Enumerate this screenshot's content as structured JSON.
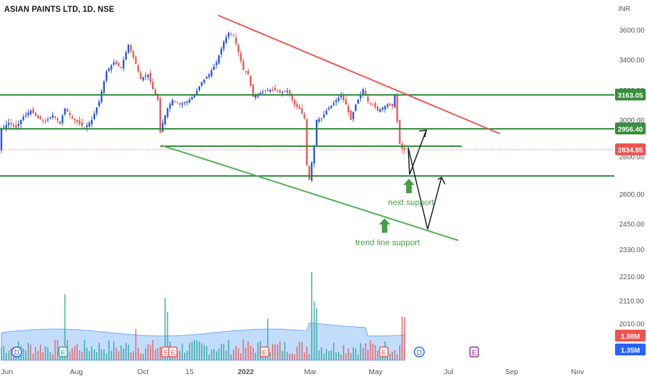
{
  "header": {
    "title": "ASIAN PAINTS LTD, 1D, NSE",
    "currency": "INR"
  },
  "chart_data": {
    "type": "candlestick",
    "title": "ASIAN PAINTS LTD, 1D, NSE",
    "yaxis_unit": "INR",
    "y_ticks": [
      "3600.00",
      "3400.00",
      "3200.00",
      "3000.00",
      "2800.00",
      "2600.00",
      "2450.00",
      "2330.00",
      "2210.00",
      "2110.00",
      "2010.00"
    ],
    "x_ticks": [
      "Jun",
      "Aug",
      "Oct",
      "15",
      "2022",
      "Mar",
      "May",
      "Jul",
      "Sep",
      "Nov"
    ],
    "price_labels": [
      {
        "text": "3163.05",
        "color": "#388e3c"
      },
      {
        "text": "2956.40",
        "color": "#388e3c"
      },
      {
        "text": "2834.85",
        "color": "#ef5350"
      },
      {
        "text": "1.88M",
        "color": "#ef5350"
      },
      {
        "text": "1.35M",
        "color": "#2962ff"
      }
    ],
    "price_path": [
      [
        0,
        2955
      ],
      [
        3,
        2985
      ],
      [
        6,
        2960
      ],
      [
        9,
        3020
      ],
      [
        12,
        3060
      ],
      [
        15,
        3010
      ],
      [
        18,
        2990
      ],
      [
        21,
        3030
      ],
      [
        24,
        2980
      ],
      [
        26,
        3075
      ],
      [
        29,
        3010
      ],
      [
        31,
        2990
      ],
      [
        34,
        2960
      ],
      [
        37,
        3000
      ],
      [
        40,
        3120
      ],
      [
        43,
        3320
      ],
      [
        46,
        3380
      ],
      [
        49,
        3345
      ],
      [
        52,
        3500
      ],
      [
        55,
        3370
      ],
      [
        57,
        3270
      ],
      [
        60,
        3300
      ],
      [
        62,
        3200
      ],
      [
        64,
        3130
      ],
      [
        65,
        2935
      ],
      [
        66,
        2985
      ],
      [
        68,
        3075
      ],
      [
        70,
        3130
      ],
      [
        73,
        3100
      ],
      [
        76,
        3120
      ],
      [
        79,
        3160
      ],
      [
        82,
        3250
      ],
      [
        85,
        3300
      ],
      [
        88,
        3380
      ],
      [
        91,
        3520
      ],
      [
        93,
        3580
      ],
      [
        95,
        3560
      ],
      [
        97,
        3450
      ],
      [
        99,
        3330
      ],
      [
        101,
        3300
      ],
      [
        103,
        3150
      ],
      [
        105,
        3170
      ],
      [
        108,
        3190
      ],
      [
        111,
        3200
      ],
      [
        114,
        3180
      ],
      [
        117,
        3190
      ],
      [
        120,
        3100
      ],
      [
        122,
        3070
      ],
      [
        124,
        3010
      ],
      [
        125,
        2770
      ],
      [
        126,
        2700
      ],
      [
        128,
        2860
      ],
      [
        129,
        3000
      ],
      [
        131,
        3010
      ],
      [
        133,
        3060
      ],
      [
        136,
        3110
      ],
      [
        139,
        3160
      ],
      [
        141,
        3100
      ],
      [
        143,
        3000
      ],
      [
        145,
        3100
      ],
      [
        148,
        3200
      ],
      [
        150,
        3120
      ],
      [
        152,
        3100
      ],
      [
        154,
        3060
      ],
      [
        156,
        3080
      ],
      [
        158,
        3100
      ],
      [
        160,
        3090
      ],
      [
        161,
        3160
      ],
      [
        162,
        2990
      ],
      [
        163,
        2870
      ],
      [
        164,
        2840
      ],
      [
        165,
        2835
      ]
    ],
    "horizontal_levels": [
      3163.05,
      2956.4,
      2820,
      2720
    ],
    "trend_lines": [
      {
        "name": "resistance",
        "color": "#ef5350",
        "from": [
          88,
          3820
        ],
        "to": [
          205,
          2940
        ]
      },
      {
        "name": "support",
        "color": "#4caf50",
        "from": [
          65,
          2820
        ],
        "to": [
          188,
          2395
        ]
      }
    ],
    "event_markers": [
      "D",
      "E",
      "E",
      "E",
      "E",
      "D",
      "E"
    ],
    "annotations": [
      "next support",
      "trend line support"
    ],
    "volume": {
      "last": "1.88M",
      "average": "1.35M"
    }
  }
}
